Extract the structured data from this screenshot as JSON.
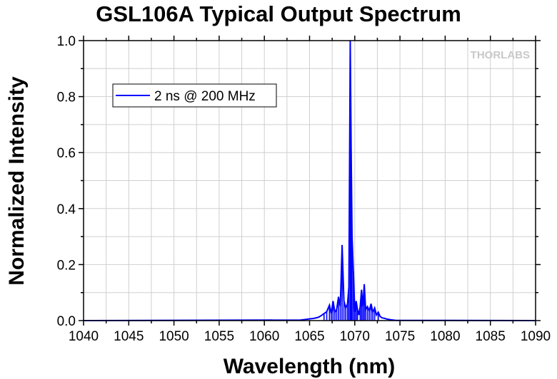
{
  "chart_data": {
    "type": "line",
    "title": "GSL106A Typical Output Spectrum",
    "xlabel": "Wavelength (nm)",
    "ylabel": "Normalized Intensity",
    "xlim": [
      1040,
      1090
    ],
    "ylim": [
      0,
      1.0
    ],
    "xticks": [
      "1040",
      "1045",
      "1050",
      "1055",
      "1060",
      "1065",
      "1070",
      "1075",
      "1080",
      "1085",
      "1090"
    ],
    "yticks": [
      "0.0",
      "0.2",
      "0.4",
      "0.6",
      "0.8",
      "1.0"
    ],
    "grid": true,
    "legend_position": "top-left",
    "watermark": "THORLABS",
    "series": [
      {
        "name": "2 ns @ 200 MHz",
        "color": "#0000ff",
        "x": [
          1040,
          1064.0,
          1064.5,
          1065.0,
          1065.5,
          1066.0,
          1066.3,
          1066.6,
          1066.9,
          1067.2,
          1067.4,
          1067.6,
          1067.8,
          1068.0,
          1068.2,
          1068.4,
          1068.6,
          1068.8,
          1069.0,
          1069.2,
          1069.35,
          1069.5,
          1069.6,
          1069.7,
          1069.85,
          1070.0,
          1070.15,
          1070.3,
          1070.45,
          1070.6,
          1070.75,
          1070.9,
          1071.05,
          1071.2,
          1071.4,
          1071.6,
          1071.8,
          1072.0,
          1072.2,
          1072.4,
          1072.6,
          1072.8,
          1073.0,
          1073.3,
          1073.6,
          1074.0,
          1074.5,
          1090
        ],
        "y": [
          0.0,
          0.002,
          0.004,
          0.006,
          0.008,
          0.012,
          0.018,
          0.025,
          0.032,
          0.055,
          0.025,
          0.07,
          0.03,
          0.04,
          0.085,
          0.05,
          0.27,
          0.07,
          0.045,
          0.06,
          0.12,
          1.0,
          0.61,
          0.3,
          0.17,
          0.03,
          0.07,
          0.04,
          0.02,
          0.05,
          0.11,
          0.05,
          0.13,
          0.04,
          0.05,
          0.035,
          0.06,
          0.03,
          0.045,
          0.02,
          0.03,
          0.015,
          0.01,
          0.008,
          0.005,
          0.003,
          0.001,
          0.0
        ]
      }
    ]
  }
}
